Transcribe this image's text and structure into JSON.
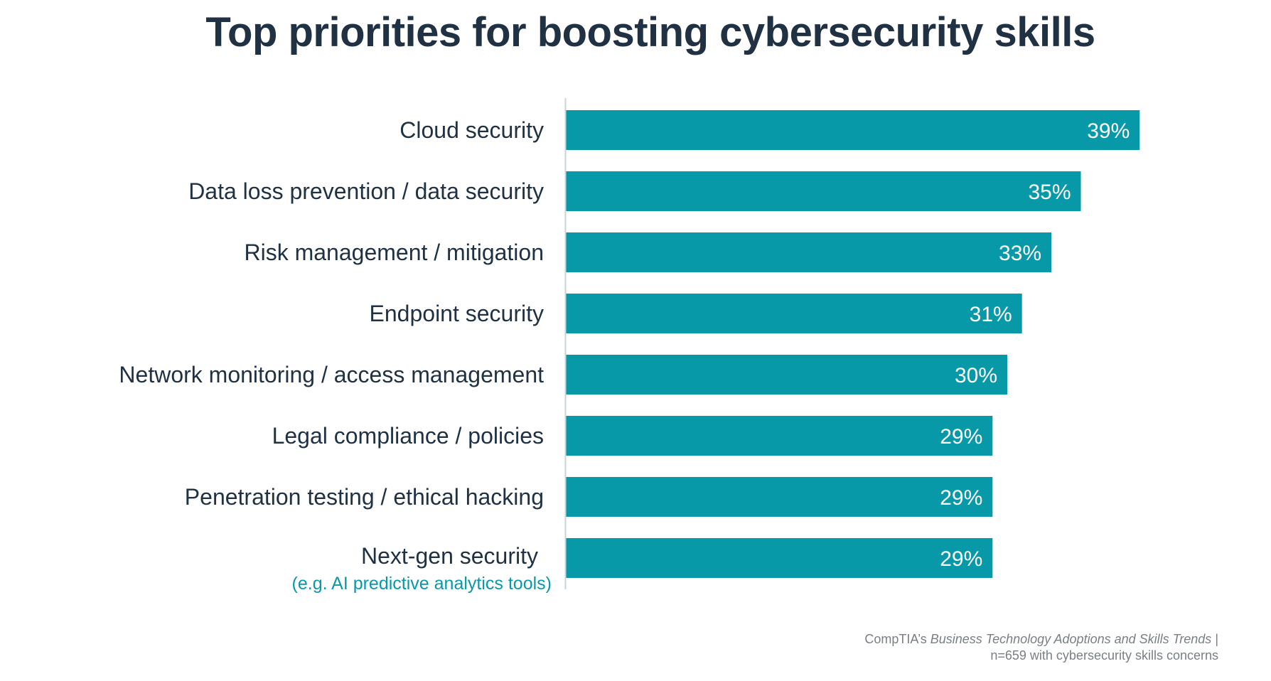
{
  "chart_data": {
    "type": "bar",
    "orientation": "horizontal",
    "title": "Top priorities for boosting cybersecurity skills",
    "categories": [
      "Cloud security",
      "Data loss prevention / data security",
      "Risk management / mitigation",
      "Endpoint security",
      "Network monitoring / access management",
      "Legal compliance / policies",
      "Penetration testing / ethical hacking",
      "Next-gen security"
    ],
    "category_notes": [
      "",
      "",
      "",
      "",
      "",
      "",
      "",
      "(e.g. AI predictive analytics tools)"
    ],
    "values": [
      39,
      35,
      33,
      31,
      30,
      29,
      29,
      29
    ],
    "value_labels": [
      "39%",
      "35%",
      "33%",
      "31%",
      "30%",
      "29%",
      "29%",
      "29%"
    ],
    "xlim": [
      0,
      50
    ],
    "xlabel": "",
    "ylabel": "",
    "grid": false,
    "colors": {
      "bar": "#0899a8",
      "axis": "#c9d3d8",
      "label": "#1f3142",
      "note": "#0899a8",
      "value_text": "#ffffff"
    }
  },
  "source": {
    "prefix": "CompTIA’s ",
    "report_title": "Business Technology Adoptions and Skills Trends",
    "suffix": " |",
    "sample": "n=659 with cybersecurity skills concerns"
  }
}
